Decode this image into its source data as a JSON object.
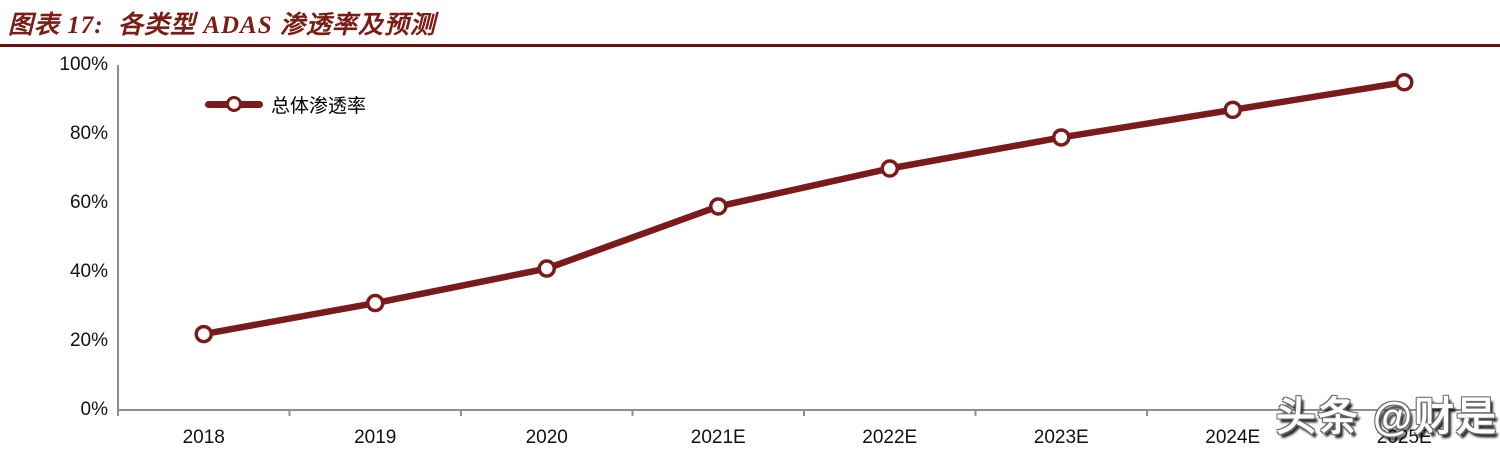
{
  "header": {
    "title": "图表 17:  各类型 ADAS 渗透率及预测"
  },
  "colors": {
    "accent_maroon": "#7A1A1A",
    "separator_maroon": "#6B1010",
    "title_maroon": "#7B1D14",
    "axis_gray": "#8F8F8F",
    "tick_text": "#111111",
    "watermark_white": "#FFFFFF"
  },
  "chart_data": {
    "type": "line",
    "title": "各类型 ADAS 渗透率及预测",
    "categories": [
      "2018",
      "2019",
      "2020",
      "2021E",
      "2022E",
      "2023E",
      "2024E",
      "2025E"
    ],
    "series": [
      {
        "name": "总体渗透率",
        "values": [
          22,
          31,
          41,
          59,
          70,
          79,
          87,
          95
        ]
      }
    ],
    "ytick_labels": [
      "100%",
      "80%",
      "60%",
      "40%",
      "20%",
      "0%"
    ],
    "yticks": [
      100,
      80,
      60,
      40,
      20,
      0
    ],
    "ylim": [
      0,
      100
    ],
    "xlabel": "",
    "ylabel": "",
    "grid": false,
    "legend_position": "top-left",
    "marker": "open-circle",
    "line_color": "#7A1A1A"
  },
  "watermark": {
    "text": "头条 @财是"
  }
}
